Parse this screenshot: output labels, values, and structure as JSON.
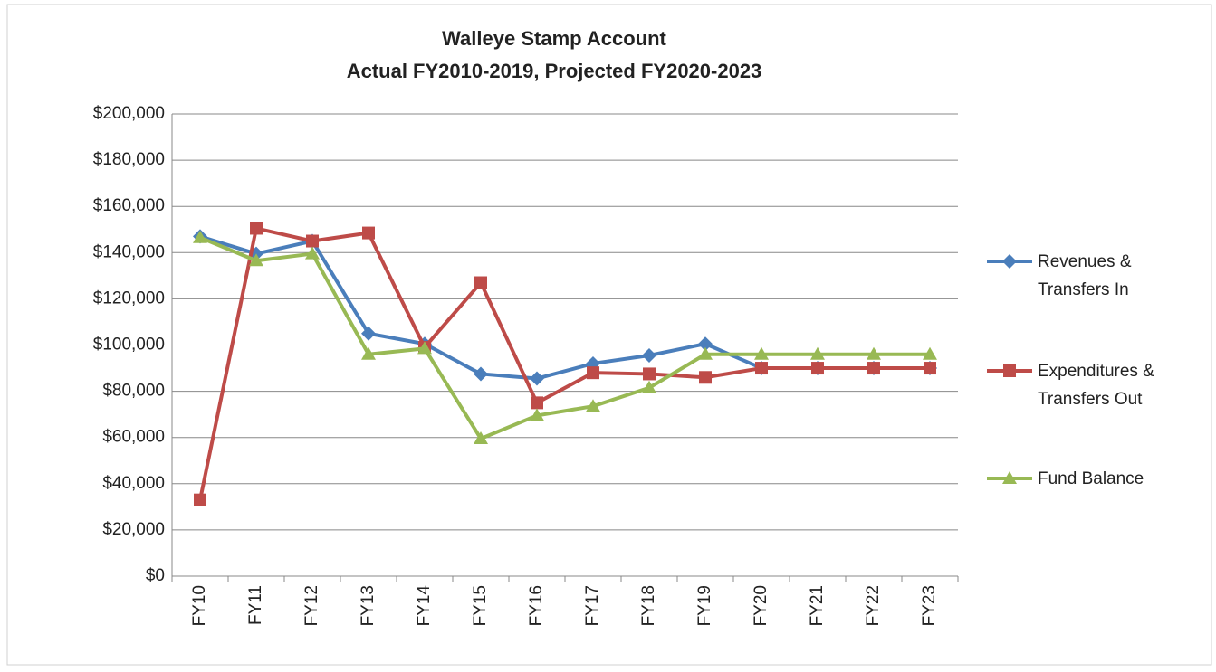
{
  "chart_data": {
    "type": "line",
    "title": "Walleye Stamp Account",
    "subtitle": "Actual FY2010-2019,  Projected FY2020-2023",
    "categories": [
      "FY10",
      "FY11",
      "FY12",
      "FY13",
      "FY14",
      "FY15",
      "FY16",
      "FY17",
      "FY18",
      "FY19",
      "FY20",
      "FY21",
      "FY22",
      "FY23"
    ],
    "series": [
      {
        "name": "Revenues & Transfers In",
        "color": "#4a7ebb",
        "marker": "diamond",
        "values": [
          147000,
          139500,
          145000,
          105000,
          100500,
          87500,
          85500,
          92000,
          95500,
          100500,
          90000,
          90000,
          90000,
          90000
        ]
      },
      {
        "name": "Expenditures & Transfers Out",
        "color": "#be4b48",
        "marker": "square",
        "values": [
          33000,
          150500,
          145000,
          148500,
          99000,
          127000,
          75000,
          88000,
          87500,
          86000,
          90000,
          90000,
          90000,
          90000
        ]
      },
      {
        "name": "Fund Balance",
        "color": "#98b954",
        "marker": "triangle",
        "values": [
          146500,
          136500,
          139500,
          96000,
          98500,
          59500,
          69500,
          73500,
          81500,
          96000,
          96000,
          96000,
          96000,
          96000
        ]
      }
    ],
    "ylim": [
      0,
      200000
    ],
    "yticks": [
      {
        "value": 0,
        "label": "$0"
      },
      {
        "value": 20000,
        "label": "$20,000"
      },
      {
        "value": 40000,
        "label": "$40,000"
      },
      {
        "value": 60000,
        "label": "$60,000"
      },
      {
        "value": 80000,
        "label": "$80,000"
      },
      {
        "value": 100000,
        "label": "$100,000"
      },
      {
        "value": 120000,
        "label": "$120,000"
      },
      {
        "value": 140000,
        "label": "$140,000"
      },
      {
        "value": 160000,
        "label": "$160,000"
      },
      {
        "value": 180000,
        "label": "$180,000"
      },
      {
        "value": 200000,
        "label": "$200,000"
      }
    ],
    "grid": true,
    "legend": "right"
  }
}
